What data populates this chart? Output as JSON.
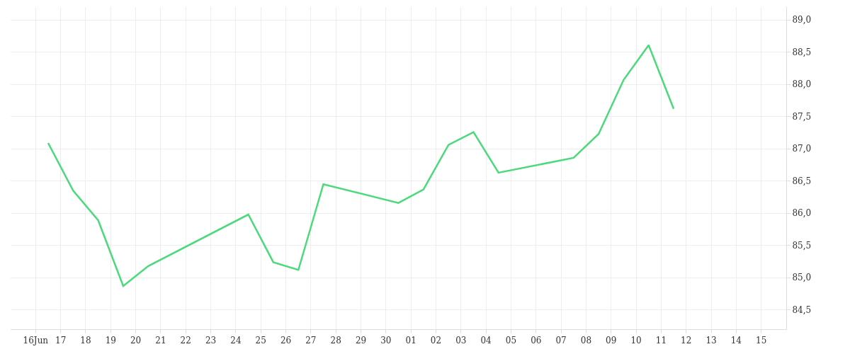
{
  "chart_data": {
    "type": "line",
    "x": [
      "--06-16T12:00",
      "--06-17T12:00",
      "--06-18T12:00",
      "--06-19T12:00",
      "--06-20T12:00",
      "--06-24T12:00",
      "--06-25T12:00",
      "--06-26T12:00",
      "--06-27T12:00",
      "--06-30T12:00",
      "--07-01T12:00",
      "--07-02T12:00",
      "--07-03T12:00",
      "--07-04T12:00",
      "--07-07T12:00",
      "--07-08T12:00",
      "--07-09T12:00",
      "--07-10T12:00",
      "--07-11T12:00"
    ],
    "series": [
      {
        "color": "#4cd97b",
        "values": [
          87.09,
          86.35,
          85.89,
          84.87,
          85.18,
          85.98,
          85.24,
          85.12,
          86.45,
          86.16,
          86.37,
          87.06,
          87.26,
          86.63,
          86.86,
          87.23,
          88.07,
          88.61,
          87.62
        ]
      }
    ],
    "xlim": [
      "--06-15",
      "--07-16"
    ],
    "xticks": [
      {
        "value": "--06-16",
        "label": "16Jun"
      },
      {
        "value": "--06-17",
        "label": "17"
      },
      {
        "value": "--06-18",
        "label": "18"
      },
      {
        "value": "--06-19",
        "label": "19"
      },
      {
        "value": "--06-20",
        "label": "20"
      },
      {
        "value": "--06-21",
        "label": "21"
      },
      {
        "value": "--06-22",
        "label": "22"
      },
      {
        "value": "--06-23",
        "label": "23"
      },
      {
        "value": "--06-24",
        "label": "24"
      },
      {
        "value": "--06-25",
        "label": "25"
      },
      {
        "value": "--06-26",
        "label": "26"
      },
      {
        "value": "--06-27",
        "label": "27"
      },
      {
        "value": "--06-28",
        "label": "28"
      },
      {
        "value": "--06-29",
        "label": "29"
      },
      {
        "value": "--06-30",
        "label": "30"
      },
      {
        "value": "--07-01",
        "label": "01"
      },
      {
        "value": "--07-02",
        "label": "02"
      },
      {
        "value": "--07-03",
        "label": "03"
      },
      {
        "value": "--07-04",
        "label": "04"
      },
      {
        "value": "--07-05",
        "label": "05"
      },
      {
        "value": "--07-06",
        "label": "06"
      },
      {
        "value": "--07-07",
        "label": "07"
      },
      {
        "value": "--07-08",
        "label": "08"
      },
      {
        "value": "--07-09",
        "label": "09"
      },
      {
        "value": "--07-10",
        "label": "10"
      },
      {
        "value": "--07-11",
        "label": "11"
      },
      {
        "value": "--07-12",
        "label": "12"
      },
      {
        "value": "--07-13",
        "label": "13"
      },
      {
        "value": "--07-14",
        "label": "14"
      },
      {
        "value": "--07-15",
        "label": "15"
      }
    ],
    "ylim": [
      84.2,
      89.2
    ],
    "yticks": [
      {
        "value": 84.5,
        "label": "84,5"
      },
      {
        "value": 85.0,
        "label": "85,0"
      },
      {
        "value": 85.5,
        "label": "85,5"
      },
      {
        "value": 86.0,
        "label": "86,0"
      },
      {
        "value": 86.5,
        "label": "86,5"
      },
      {
        "value": 87.0,
        "label": "87,0"
      },
      {
        "value": 87.5,
        "label": "87,5"
      },
      {
        "value": 88.0,
        "label": "88,0"
      },
      {
        "value": 88.5,
        "label": "88,5"
      },
      {
        "value": 89.0,
        "label": "89,0"
      }
    ],
    "grid": true,
    "marker": "none",
    "line_style": "solid"
  }
}
